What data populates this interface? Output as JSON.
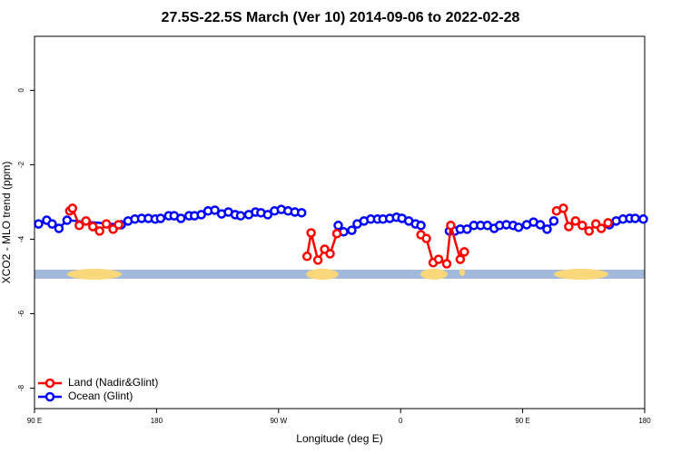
{
  "chart_data": {
    "type": "line",
    "title": "27.5S-22.5S March (Ver 10)   2014-09-06 to 2022-02-28",
    "x_label": "Longitude (deg E)",
    "y_label": "XCO2 - MLO trend (ppm)",
    "xlim": [
      90,
      540
    ],
    "ylim": [
      -8.55,
      1.45
    ],
    "xticks": [
      {
        "value": 90,
        "label": "90 E"
      },
      {
        "value": 180,
        "label": "180"
      },
      {
        "value": 270,
        "label": "90 W"
      },
      {
        "value": 360,
        "label": "0"
      },
      {
        "value": 450,
        "label": "90 E"
      },
      {
        "value": 540,
        "label": "180"
      }
    ],
    "yticks": [
      0,
      -2,
      -4,
      -6,
      -8
    ],
    "legend": "bottom-left",
    "series": [
      {
        "name": "Land (Nadir&Glint)",
        "color": "#ff0000",
        "x": [
          116,
          118,
          123,
          128,
          133,
          138,
          143,
          148,
          152,
          null,
          291,
          294,
          299,
          304,
          308,
          313,
          null,
          375,
          379,
          384,
          388,
          394,
          397,
          404,
          407,
          null,
          475,
          480,
          484,
          489,
          494,
          499,
          504,
          508,
          513
        ],
        "values": [
          -3.24,
          -3.17,
          -3.63,
          -3.51,
          -3.66,
          -3.78,
          -3.59,
          -3.73,
          -3.61,
          null,
          -4.46,
          -3.83,
          -4.56,
          -4.27,
          -4.39,
          -3.85,
          null,
          -3.88,
          -3.98,
          -4.63,
          -4.54,
          -4.66,
          -3.63,
          -4.54,
          -4.34,
          null,
          -3.24,
          -3.17,
          -3.66,
          -3.51,
          -3.63,
          -3.78,
          -3.59,
          -3.71,
          -3.56
        ]
      },
      {
        "name": "Ocean (Glint)",
        "color": "#0000ff",
        "x": [
          93,
          99,
          103,
          108,
          114,
          154,
          159,
          164,
          169,
          174,
          179,
          183,
          189,
          193,
          198,
          204,
          208,
          213,
          218,
          223,
          228,
          233,
          238,
          242,
          248,
          253,
          257,
          262,
          267,
          272,
          277,
          282,
          287,
          null,
          314,
          318,
          324,
          328,
          333,
          338,
          343,
          347,
          352,
          357,
          361,
          366,
          371,
          375,
          null,
          396,
          400,
          404,
          409,
          414,
          419,
          424,
          429,
          433,
          438,
          443,
          447,
          453,
          458,
          463,
          468,
          473,
          null,
          514,
          519,
          524,
          529,
          533,
          539
        ],
        "values": [
          -3.59,
          -3.49,
          -3.59,
          -3.71,
          -3.49,
          -3.61,
          -3.51,
          -3.46,
          -3.44,
          -3.44,
          -3.46,
          -3.44,
          -3.37,
          -3.37,
          -3.44,
          -3.37,
          -3.37,
          -3.34,
          -3.24,
          -3.22,
          -3.32,
          -3.27,
          -3.34,
          -3.37,
          -3.34,
          -3.27,
          -3.29,
          -3.34,
          -3.24,
          -3.2,
          -3.24,
          -3.27,
          -3.29,
          null,
          -3.63,
          -3.8,
          -3.76,
          -3.59,
          -3.51,
          -3.46,
          -3.46,
          -3.46,
          -3.44,
          -3.41,
          -3.44,
          -3.51,
          -3.59,
          -3.63,
          null,
          -3.78,
          -3.78,
          -3.73,
          -3.73,
          -3.63,
          -3.63,
          -3.63,
          -3.71,
          -3.63,
          -3.61,
          -3.63,
          -3.68,
          -3.61,
          -3.54,
          -3.61,
          -3.73,
          -3.51,
          null,
          -3.61,
          -3.51,
          -3.46,
          -3.44,
          -3.44,
          -3.46
        ]
      }
    ]
  }
}
